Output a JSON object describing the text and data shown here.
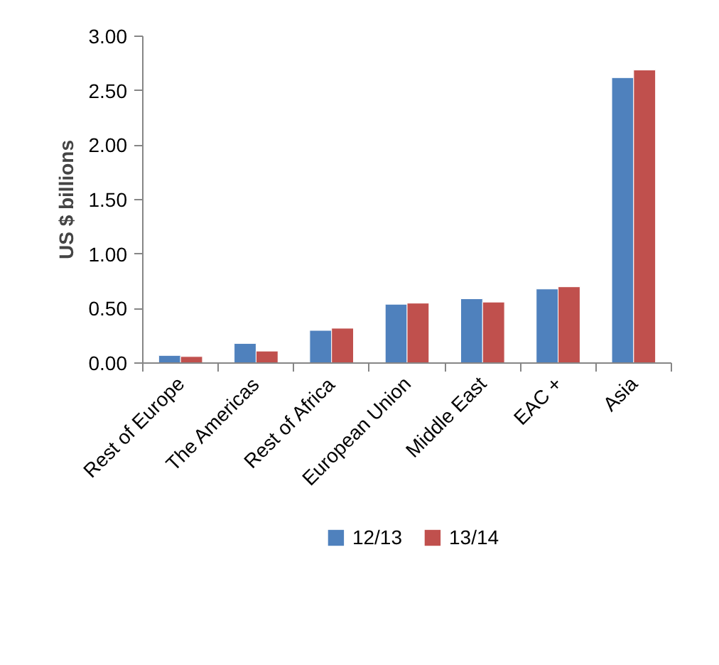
{
  "chart_data": {
    "type": "bar",
    "ylabel": "US $ billions",
    "categories": [
      "Rest of Europe",
      "The Americas",
      "Rest of Africa",
      "European Union",
      "Middle East",
      "EAC +",
      "Asia"
    ],
    "series": [
      {
        "name": "12/13",
        "color": "#4f81bd",
        "values": [
          0.07,
          0.18,
          0.3,
          0.54,
          0.59,
          0.68,
          2.62
        ]
      },
      {
        "name": "13/14",
        "color": "#c0504d",
        "values": [
          0.06,
          0.11,
          0.32,
          0.55,
          0.56,
          0.7,
          2.69
        ]
      }
    ],
    "ylim": [
      0,
      3
    ],
    "yticks": [
      {
        "value": 0,
        "label": "0.00"
      },
      {
        "value": 0.5,
        "label": "0.50"
      },
      {
        "value": 1,
        "label": "1.00"
      },
      {
        "value": 1.5,
        "label": "1.50"
      },
      {
        "value": 2,
        "label": "2.00"
      },
      {
        "value": 2.5,
        "label": "2.50"
      },
      {
        "value": 3,
        "label": "3.00"
      }
    ],
    "grid": false,
    "legend": "bottom"
  }
}
